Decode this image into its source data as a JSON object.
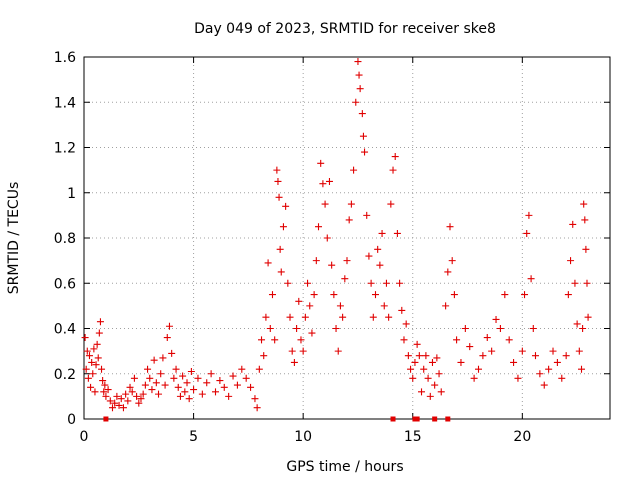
{
  "chart_data": {
    "type": "scatter",
    "title": "Day 049 of 2023, SRMTID for receiver ske8",
    "xlabel": "GPS time / hours",
    "ylabel": "SRMTID / TECUs",
    "xlim": [
      0,
      24
    ],
    "ylim": [
      0,
      1.6
    ],
    "x_ticks": [
      0,
      5,
      10,
      15,
      20
    ],
    "x_tick_labels": [
      "0",
      "5",
      "10",
      "15",
      "20"
    ],
    "y_ticks": [
      0,
      0.2,
      0.4,
      0.6,
      0.8,
      1.0,
      1.2,
      1.4,
      1.6
    ],
    "y_tick_labels": [
      "0",
      "0.2",
      "0.4",
      "0.6",
      "0.8",
      "1",
      "1.2",
      "1.4",
      "1.6"
    ],
    "grid": true,
    "marker": "plus",
    "color": "#e00000",
    "series": [
      {
        "name": "SRMTID",
        "points": [
          [
            0.05,
            0.36
          ],
          [
            0.1,
            0.22
          ],
          [
            0.15,
            0.3
          ],
          [
            0.2,
            0.18
          ],
          [
            0.25,
            0.28
          ],
          [
            0.3,
            0.14
          ],
          [
            0.35,
            0.25
          ],
          [
            0.4,
            0.2
          ],
          [
            0.45,
            0.31
          ],
          [
            0.5,
            0.12
          ],
          [
            0.55,
            0.24
          ],
          [
            0.6,
            0.33
          ],
          [
            0.65,
            0.27
          ],
          [
            0.7,
            0.38
          ],
          [
            0.75,
            0.43
          ],
          [
            0.8,
            0.22
          ],
          [
            0.85,
            0.17
          ],
          [
            0.9,
            0.12
          ],
          [
            0.95,
            0.15
          ],
          [
            1.0,
            0.1
          ],
          [
            1.1,
            0.13
          ],
          [
            1.2,
            0.08
          ],
          [
            1.3,
            0.05
          ],
          [
            1.4,
            0.07
          ],
          [
            1.5,
            0.1
          ],
          [
            1.6,
            0.06
          ],
          [
            1.7,
            0.09
          ],
          [
            1.8,
            0.05
          ],
          [
            1.9,
            0.11
          ],
          [
            2.0,
            0.08
          ],
          [
            2.1,
            0.14
          ],
          [
            2.2,
            0.12
          ],
          [
            2.3,
            0.18
          ],
          [
            2.4,
            0.1
          ],
          [
            2.5,
            0.07
          ],
          [
            2.6,
            0.09
          ],
          [
            2.7,
            0.11
          ],
          [
            2.8,
            0.15
          ],
          [
            2.9,
            0.22
          ],
          [
            3.0,
            0.18
          ],
          [
            3.1,
            0.13
          ],
          [
            3.2,
            0.26
          ],
          [
            3.3,
            0.16
          ],
          [
            3.4,
            0.11
          ],
          [
            3.5,
            0.2
          ],
          [
            3.6,
            0.27
          ],
          [
            3.7,
            0.15
          ],
          [
            3.8,
            0.36
          ],
          [
            3.9,
            0.41
          ],
          [
            4.0,
            0.29
          ],
          [
            4.1,
            0.18
          ],
          [
            4.2,
            0.22
          ],
          [
            4.3,
            0.14
          ],
          [
            4.4,
            0.1
          ],
          [
            4.5,
            0.19
          ],
          [
            4.6,
            0.12
          ],
          [
            4.7,
            0.16
          ],
          [
            4.8,
            0.09
          ],
          [
            4.9,
            0.21
          ],
          [
            5.0,
            0.13
          ],
          [
            5.2,
            0.18
          ],
          [
            5.4,
            0.11
          ],
          [
            5.6,
            0.16
          ],
          [
            5.8,
            0.2
          ],
          [
            6.0,
            0.12
          ],
          [
            6.2,
            0.17
          ],
          [
            6.4,
            0.14
          ],
          [
            6.6,
            0.1
          ],
          [
            6.8,
            0.19
          ],
          [
            7.0,
            0.15
          ],
          [
            7.2,
            0.22
          ],
          [
            7.4,
            0.18
          ],
          [
            7.6,
            0.14
          ],
          [
            7.8,
            0.09
          ],
          [
            7.9,
            0.05
          ],
          [
            8.0,
            0.22
          ],
          [
            8.1,
            0.35
          ],
          [
            8.2,
            0.28
          ],
          [
            8.3,
            0.45
          ],
          [
            8.4,
            0.69
          ],
          [
            8.5,
            0.4
          ],
          [
            8.6,
            0.55
          ],
          [
            8.7,
            0.35
          ],
          [
            8.8,
            1.1
          ],
          [
            8.85,
            1.05
          ],
          [
            8.9,
            0.98
          ],
          [
            8.95,
            0.75
          ],
          [
            9.0,
            0.65
          ],
          [
            9.1,
            0.85
          ],
          [
            9.2,
            0.94
          ],
          [
            9.3,
            0.6
          ],
          [
            9.4,
            0.45
          ],
          [
            9.5,
            0.3
          ],
          [
            9.6,
            0.25
          ],
          [
            9.7,
            0.4
          ],
          [
            9.8,
            0.52
          ],
          [
            9.9,
            0.35
          ],
          [
            10.0,
            0.3
          ],
          [
            10.1,
            0.45
          ],
          [
            10.2,
            0.6
          ],
          [
            10.3,
            0.5
          ],
          [
            10.4,
            0.38
          ],
          [
            10.5,
            0.55
          ],
          [
            10.6,
            0.7
          ],
          [
            10.7,
            0.85
          ],
          [
            10.8,
            1.13
          ],
          [
            10.9,
            1.04
          ],
          [
            11.0,
            0.95
          ],
          [
            11.1,
            0.8
          ],
          [
            11.2,
            1.05
          ],
          [
            11.3,
            0.68
          ],
          [
            11.4,
            0.55
          ],
          [
            11.5,
            0.4
          ],
          [
            11.6,
            0.3
          ],
          [
            11.7,
            0.5
          ],
          [
            11.8,
            0.45
          ],
          [
            11.9,
            0.62
          ],
          [
            12.0,
            0.7
          ],
          [
            12.1,
            0.88
          ],
          [
            12.2,
            0.95
          ],
          [
            12.3,
            1.1
          ],
          [
            12.4,
            1.4
          ],
          [
            12.5,
            1.58
          ],
          [
            12.55,
            1.52
          ],
          [
            12.6,
            1.46
          ],
          [
            12.7,
            1.35
          ],
          [
            12.75,
            1.25
          ],
          [
            12.8,
            1.18
          ],
          [
            12.9,
            0.9
          ],
          [
            13.0,
            0.72
          ],
          [
            13.1,
            0.6
          ],
          [
            13.2,
            0.45
          ],
          [
            13.3,
            0.55
          ],
          [
            13.4,
            0.75
          ],
          [
            13.5,
            0.68
          ],
          [
            13.6,
            0.82
          ],
          [
            13.7,
            0.5
          ],
          [
            13.8,
            0.6
          ],
          [
            13.9,
            0.45
          ],
          [
            14.0,
            0.95
          ],
          [
            14.1,
            1.1
          ],
          [
            14.2,
            1.16
          ],
          [
            14.3,
            0.82
          ],
          [
            14.4,
            0.6
          ],
          [
            14.5,
            0.48
          ],
          [
            14.6,
            0.35
          ],
          [
            14.7,
            0.42
          ],
          [
            14.8,
            0.28
          ],
          [
            14.9,
            0.22
          ],
          [
            15.0,
            0.18
          ],
          [
            15.1,
            0.25
          ],
          [
            15.2,
            0.33
          ],
          [
            15.3,
            0.28
          ],
          [
            15.4,
            0.12
          ],
          [
            15.5,
            0.22
          ],
          [
            15.6,
            0.28
          ],
          [
            15.7,
            0.18
          ],
          [
            15.8,
            0.1
          ],
          [
            15.9,
            0.25
          ],
          [
            16.0,
            0.15
          ],
          [
            16.1,
            0.27
          ],
          [
            16.2,
            0.2
          ],
          [
            16.3,
            0.12
          ],
          [
            16.5,
            0.5
          ],
          [
            16.6,
            0.65
          ],
          [
            16.7,
            0.85
          ],
          [
            16.8,
            0.7
          ],
          [
            16.9,
            0.55
          ],
          [
            17.0,
            0.35
          ],
          [
            17.2,
            0.25
          ],
          [
            17.4,
            0.4
          ],
          [
            17.6,
            0.32
          ],
          [
            17.8,
            0.18
          ],
          [
            18.0,
            0.22
          ],
          [
            18.2,
            0.28
          ],
          [
            18.4,
            0.36
          ],
          [
            18.6,
            0.3
          ],
          [
            18.8,
            0.44
          ],
          [
            19.0,
            0.4
          ],
          [
            19.2,
            0.55
          ],
          [
            19.4,
            0.35
          ],
          [
            19.6,
            0.25
          ],
          [
            19.8,
            0.18
          ],
          [
            20.0,
            0.3
          ],
          [
            20.1,
            0.55
          ],
          [
            20.2,
            0.82
          ],
          [
            20.3,
            0.9
          ],
          [
            20.4,
            0.62
          ],
          [
            20.5,
            0.4
          ],
          [
            20.6,
            0.28
          ],
          [
            20.8,
            0.2
          ],
          [
            21.0,
            0.15
          ],
          [
            21.2,
            0.22
          ],
          [
            21.4,
            0.3
          ],
          [
            21.6,
            0.25
          ],
          [
            21.8,
            0.18
          ],
          [
            22.0,
            0.28
          ],
          [
            22.1,
            0.55
          ],
          [
            22.2,
            0.7
          ],
          [
            22.3,
            0.86
          ],
          [
            22.4,
            0.6
          ],
          [
            22.5,
            0.42
          ],
          [
            22.6,
            0.3
          ],
          [
            22.7,
            0.22
          ],
          [
            22.75,
            0.4
          ],
          [
            22.8,
            0.95
          ],
          [
            22.85,
            0.88
          ],
          [
            22.9,
            0.75
          ],
          [
            22.95,
            0.6
          ],
          [
            23.0,
            0.45
          ]
        ]
      },
      {
        "name": "zero-markers",
        "marker": "square",
        "points": [
          [
            1.0,
            0
          ],
          [
            14.1,
            0
          ],
          [
            15.1,
            0
          ],
          [
            15.2,
            0
          ],
          [
            16.0,
            0
          ],
          [
            16.6,
            0
          ]
        ]
      }
    ]
  }
}
